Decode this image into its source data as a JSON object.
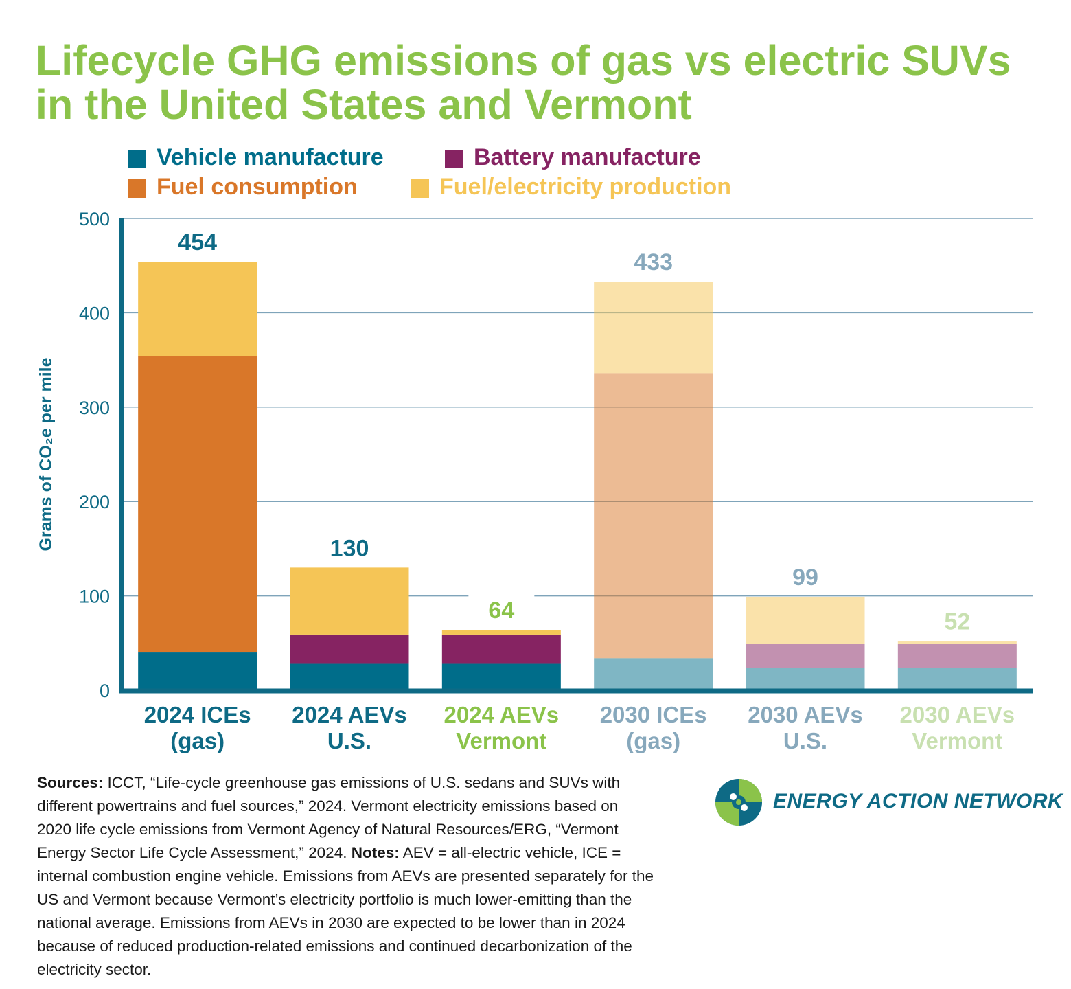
{
  "title": "Lifecycle GHG emissions of gas vs electric SUVs in the United States and Vermont",
  "legend": [
    {
      "label": "Vehicle manufacture",
      "color": "#006d8a"
    },
    {
      "label": "Battery manufacture",
      "color": "#862362"
    },
    {
      "label": "Fuel consumption",
      "color": "#d97729"
    },
    {
      "label": "Fuel/electricity production",
      "color": "#f5c556"
    }
  ],
  "chart_data": {
    "type": "bar",
    "stacked": true,
    "ylabel": "Grams of CO₂e per mile",
    "ylim": [
      0,
      500
    ],
    "yticks": [
      "0",
      "100",
      "200",
      "300",
      "400",
      "500"
    ],
    "grid": true,
    "legend_position": "top-left",
    "categories": [
      {
        "line1": "2024 ICEs",
        "line2": "(gas)"
      },
      {
        "line1": "2024 AEVs",
        "line2": "U.S."
      },
      {
        "line1": "2024 AEVs",
        "line2": "Vermont"
      },
      {
        "line1": "2030 ICEs",
        "line2": "(gas)"
      },
      {
        "line1": "2030 AEVs",
        "line2": "U.S."
      },
      {
        "line1": "2030 AEVs",
        "line2": "Vermont"
      }
    ],
    "series": [
      {
        "name": "Vehicle manufacture",
        "values": [
          40,
          28,
          28,
          34,
          24,
          24
        ]
      },
      {
        "name": "Battery manufacture",
        "values": [
          0,
          31,
          31,
          0,
          25,
          25
        ]
      },
      {
        "name": "Fuel consumption",
        "values": [
          314,
          0,
          0,
          302,
          0,
          0
        ]
      },
      {
        "name": "Fuel/electricity production",
        "values": [
          100,
          71,
          5,
          97,
          50,
          3
        ]
      }
    ],
    "totals": [
      "454",
      "130",
      "64",
      "433",
      "99",
      "52"
    ],
    "category_colors": [
      "#0e6a85",
      "#0e6a85",
      "#8bc34a",
      "#87a8bc",
      "#87a8bc",
      "#c8e0b0"
    ],
    "faded": [
      false,
      false,
      false,
      true,
      true,
      true
    ]
  },
  "sources": {
    "sources_label": "Sources:",
    "sources_text": " ICCT, “Life-cycle greenhouse gas emissions of U.S. sedans and SUVs with different powertrains and fuel sources,” 2024. Vermont electricity emissions based on 2020 life cycle emissions from Vermont Agency of Natural Resources/ERG, “Vermont Energy Sector Life Cycle Assessment,” 2024. ",
    "notes_label": "Notes:",
    "notes_text": " AEV = all-electric vehicle, ICE = internal combustion engine vehicle. Emissions from AEVs are presented separately for the US and Vermont because Vermont’s electricity portfolio is much lower-emitting than the national average. Emissions from AEVs in 2030 are expected to be lower than in 2024 because of reduced production-related emissions and continued decarbonization of the electricity sector."
  },
  "logo": {
    "name": "Energy Action Network",
    "colors": [
      "#8bc34a",
      "#0e6a85"
    ]
  }
}
